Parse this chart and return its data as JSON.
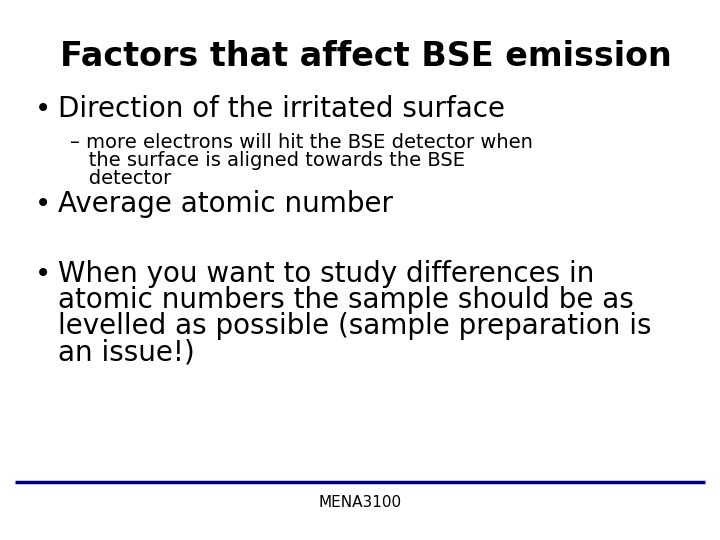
{
  "title": "Factors that affect BSE emission",
  "title_fontsize": 24,
  "background_color": "#ffffff",
  "text_color": "#000000",
  "footer_text": "MENA3100",
  "footer_fontsize": 11,
  "footer_color": "#000000",
  "line_color": "#000080",
  "bullet1": "Direction of the irritated surface",
  "bullet1_fontsize": 20,
  "sub_bullet1_line1": "– more electrons will hit the BSE detector when",
  "sub_bullet1_line2": "   the surface is aligned towards the BSE",
  "sub_bullet1_line3": "   detector",
  "sub_bullet1_fontsize": 14,
  "bullet2": "Average atomic number",
  "bullet2_fontsize": 20,
  "bullet3_line1": "When you want to study differences in",
  "bullet3_line2": "atomic numbers the sample should be as",
  "bullet3_line3": "levelled as possible (sample preparation is",
  "bullet3_line4": "an issue!)",
  "bullet3_fontsize": 20
}
